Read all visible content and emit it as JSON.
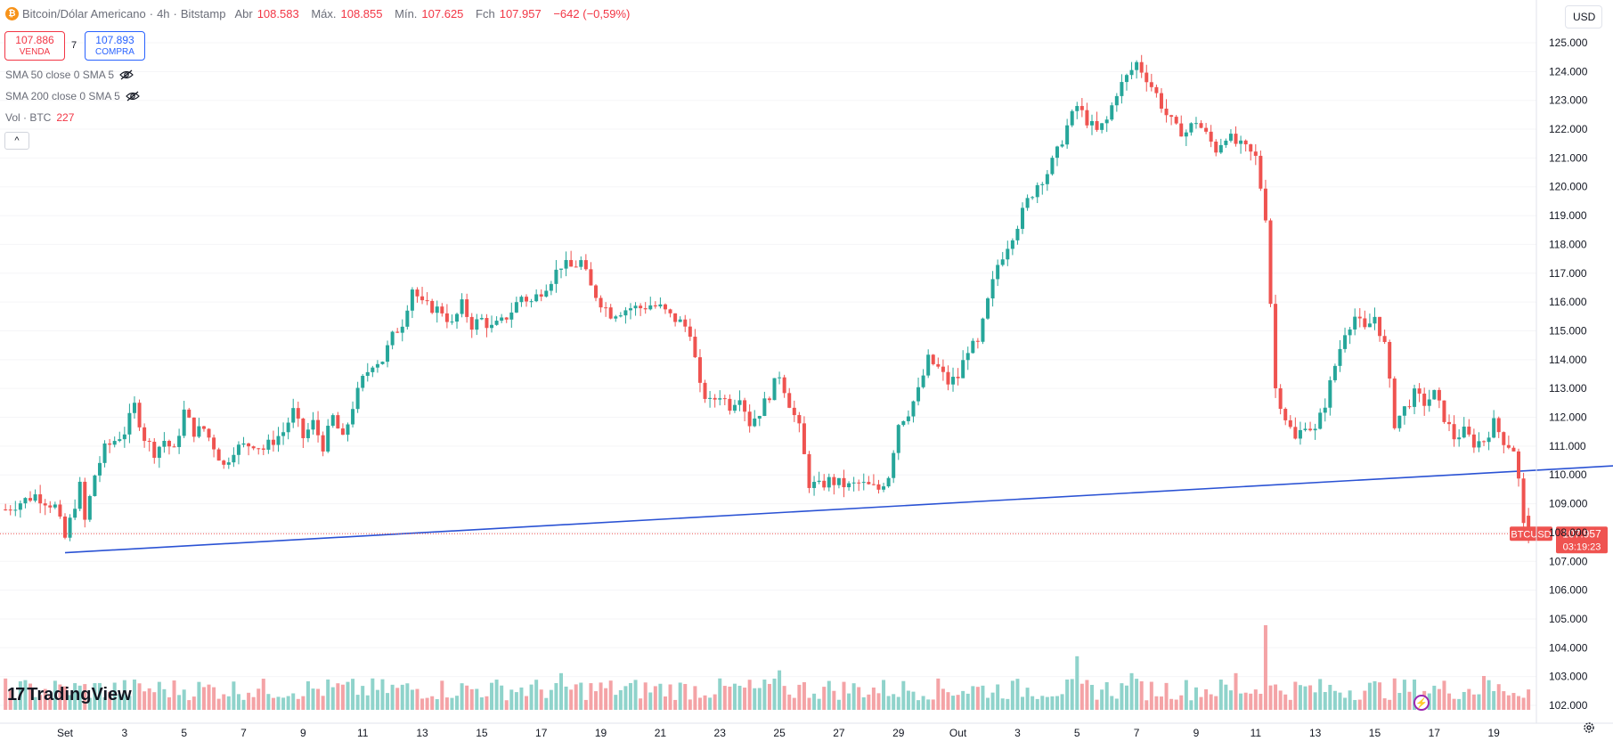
{
  "header": {
    "coin_icon": "bitcoin-icon",
    "symbol_title": "Bitcoin/Dólar Americano",
    "dot1": "·",
    "interval": "4h",
    "dot2": "·",
    "exchange": "Bitstamp",
    "open_label": "Abr",
    "open_value": "108.583",
    "high_label": "Máx.",
    "high_value": "108.855",
    "low_label": "Mín.",
    "low_value": "107.625",
    "close_label": "Fch",
    "close_value": "107.957",
    "change": "−642 (−0,59%)"
  },
  "trade": {
    "sell_price": "107.886",
    "sell_label": "VENDA",
    "spread": "7",
    "buy_price": "107.893",
    "buy_label": "COMPRA"
  },
  "indicators": {
    "sma50": "SMA 50 close 0 SMA 5",
    "sma200": "SMA 200 close 0 SMA 5",
    "vol_label": "Vol · BTC",
    "vol_value": "227"
  },
  "collapse_glyph": "^",
  "currency_button": "USD",
  "logo_text": "TradingView",
  "logo_mark": "17",
  "price_tag": {
    "symbol": "BTCUSD",
    "price": "107.957",
    "countdown": "03:19:23"
  },
  "colors": {
    "up": "#26a69a",
    "down": "#ef5350",
    "trendline": "#2a52d4",
    "vol_up": "#8fd3cb",
    "vol_down": "#f4a3a6",
    "price_line": "#ef5350"
  },
  "chart_data": {
    "type": "candlestick",
    "interval": "4h",
    "y_axis": {
      "ticks": [
        102000,
        103000,
        104000,
        105000,
        106000,
        107000,
        108000,
        109000,
        110000,
        111000,
        112000,
        113000,
        114000,
        115000,
        116000,
        117000,
        118000,
        119000,
        120000,
        121000,
        122000,
        123000,
        124000,
        125000
      ],
      "tick_labels": [
        "102.000",
        "103.000",
        "104.000",
        "105.000",
        "106.000",
        "107.000",
        "108.000",
        "109.000",
        "110.000",
        "111.000",
        "112.000",
        "113.000",
        "114.000",
        "115.000",
        "116.000",
        "117.000",
        "118.000",
        "119.000",
        "120.000",
        "121.000",
        "122.000",
        "123.000",
        "124.000",
        "125.000"
      ],
      "range": [
        101600,
        125500
      ]
    },
    "x_axis": {
      "labels": [
        "Set",
        "3",
        "5",
        "7",
        "9",
        "11",
        "13",
        "15",
        "17",
        "19",
        "21",
        "23",
        "25",
        "27",
        "29",
        "Out",
        "3",
        "5",
        "7",
        "9",
        "11",
        "13",
        "15",
        "17",
        "19"
      ],
      "label_bars": [
        0,
        12,
        24,
        36,
        48,
        60,
        72,
        84,
        96,
        108,
        120,
        132,
        144,
        156,
        168,
        180,
        192,
        204,
        216,
        228,
        240,
        252,
        264,
        276,
        288
      ],
      "bars_per_day": 6,
      "visible_bar_range": [
        -13,
        305
      ]
    },
    "anchors": [
      [
        -12,
        108800
      ],
      [
        -6,
        109300
      ],
      [
        -2,
        108900
      ],
      [
        0,
        107800
      ],
      [
        3,
        109600
      ],
      [
        4,
        108400
      ],
      [
        6,
        110000
      ],
      [
        8,
        110900
      ],
      [
        10,
        111200
      ],
      [
        12,
        111500
      ],
      [
        14,
        112400
      ],
      [
        16,
        111300
      ],
      [
        18,
        110800
      ],
      [
        20,
        111200
      ],
      [
        22,
        110800
      ],
      [
        24,
        112200
      ],
      [
        26,
        111500
      ],
      [
        28,
        111600
      ],
      [
        30,
        111000
      ],
      [
        32,
        110300
      ],
      [
        34,
        110900
      ],
      [
        36,
        111000
      ],
      [
        38,
        111100
      ],
      [
        40,
        110900
      ],
      [
        44,
        111500
      ],
      [
        46,
        112200
      ],
      [
        48,
        111300
      ],
      [
        50,
        111800
      ],
      [
        52,
        111000
      ],
      [
        54,
        112000
      ],
      [
        56,
        111200
      ],
      [
        58,
        112400
      ],
      [
        60,
        113300
      ],
      [
        62,
        113900
      ],
      [
        64,
        114000
      ],
      [
        66,
        114800
      ],
      [
        68,
        115300
      ],
      [
        70,
        116500
      ],
      [
        72,
        115900
      ],
      [
        74,
        115800
      ],
      [
        76,
        115700
      ],
      [
        78,
        115200
      ],
      [
        80,
        115900
      ],
      [
        82,
        115200
      ],
      [
        84,
        115400
      ],
      [
        86,
        115100
      ],
      [
        88,
        115300
      ],
      [
        90,
        115700
      ],
      [
        92,
        116200
      ],
      [
        94,
        116000
      ],
      [
        96,
        116400
      ],
      [
        98,
        116800
      ],
      [
        100,
        117300
      ],
      [
        102,
        117200
      ],
      [
        104,
        117400
      ],
      [
        106,
        116500
      ],
      [
        108,
        116000
      ],
      [
        110,
        115600
      ],
      [
        112,
        115700
      ],
      [
        114,
        115800
      ],
      [
        116,
        115800
      ],
      [
        118,
        115900
      ],
      [
        120,
        115800
      ],
      [
        122,
        115500
      ],
      [
        124,
        115300
      ],
      [
        126,
        115000
      ],
      [
        128,
        113000
      ],
      [
        130,
        112500
      ],
      [
        132,
        112800
      ],
      [
        134,
        112400
      ],
      [
        136,
        112800
      ],
      [
        138,
        111800
      ],
      [
        140,
        112200
      ],
      [
        142,
        112800
      ],
      [
        144,
        113500
      ],
      [
        146,
        112500
      ],
      [
        148,
        111600
      ],
      [
        150,
        109700
      ],
      [
        152,
        109600
      ],
      [
        154,
        109800
      ],
      [
        156,
        109700
      ],
      [
        158,
        109600
      ],
      [
        160,
        109700
      ],
      [
        162,
        109600
      ],
      [
        164,
        109500
      ],
      [
        166,
        110000
      ],
      [
        168,
        111800
      ],
      [
        170,
        112200
      ],
      [
        172,
        112900
      ],
      [
        174,
        114000
      ],
      [
        176,
        113700
      ],
      [
        178,
        113200
      ],
      [
        180,
        113400
      ],
      [
        182,
        114400
      ],
      [
        184,
        114500
      ],
      [
        186,
        116000
      ],
      [
        188,
        117300
      ],
      [
        190,
        118000
      ],
      [
        192,
        118700
      ],
      [
        194,
        119500
      ],
      [
        196,
        120100
      ],
      [
        198,
        120500
      ],
      [
        200,
        121200
      ],
      [
        202,
        122100
      ],
      [
        204,
        122800
      ],
      [
        206,
        122300
      ],
      [
        208,
        121900
      ],
      [
        210,
        122300
      ],
      [
        212,
        123300
      ],
      [
        214,
        123800
      ],
      [
        216,
        124300
      ],
      [
        218,
        123800
      ],
      [
        220,
        123200
      ],
      [
        222,
        122500
      ],
      [
        224,
        122000
      ],
      [
        226,
        121900
      ],
      [
        228,
        122300
      ],
      [
        230,
        121800
      ],
      [
        232,
        121300
      ],
      [
        234,
        121800
      ],
      [
        236,
        121500
      ],
      [
        238,
        121300
      ],
      [
        240,
        121000
      ],
      [
        242,
        119000
      ],
      [
        244,
        113000
      ],
      [
        246,
        112000
      ],
      [
        248,
        111200
      ],
      [
        250,
        111800
      ],
      [
        252,
        111500
      ],
      [
        254,
        112500
      ],
      [
        256,
        113800
      ],
      [
        258,
        115000
      ],
      [
        260,
        115500
      ],
      [
        262,
        115000
      ],
      [
        264,
        115500
      ],
      [
        266,
        114500
      ],
      [
        268,
        111800
      ],
      [
        270,
        112300
      ],
      [
        272,
        112800
      ],
      [
        274,
        112500
      ],
      [
        276,
        112800
      ],
      [
        278,
        112000
      ],
      [
        280,
        111300
      ],
      [
        282,
        111500
      ],
      [
        284,
        111100
      ],
      [
        286,
        111200
      ],
      [
        288,
        111800
      ],
      [
        290,
        111200
      ],
      [
        292,
        110900
      ],
      [
        293,
        109800
      ],
      [
        294,
        108200
      ],
      [
        295,
        107957
      ]
    ],
    "volume_peaks": {
      "242": 3,
      "204": 1.9,
      "144": 1.4,
      "100": 1.3,
      "215": 1.3,
      "236": 1.3,
      "286": 1.2
    },
    "last_close": 107957,
    "trendline": {
      "type": "line",
      "from": {
        "bar": 0,
        "price": 107300
      },
      "to": {
        "bar": 302,
        "price": 110150
      }
    }
  }
}
